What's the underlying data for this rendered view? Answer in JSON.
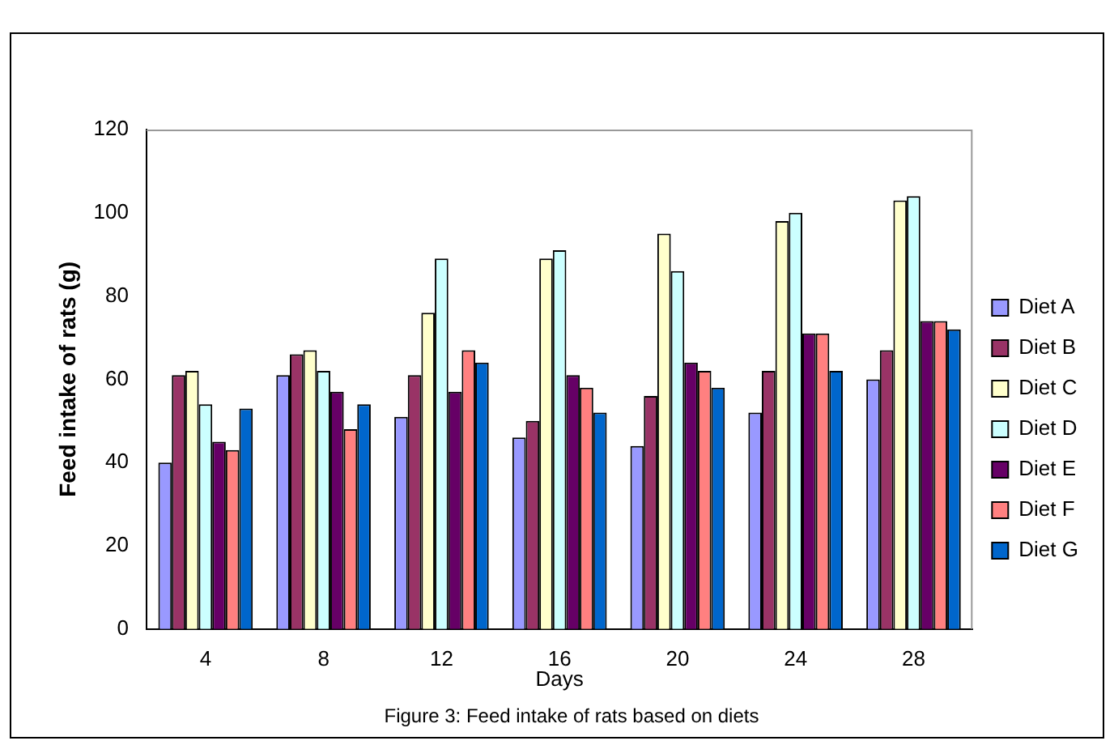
{
  "chart_data": {
    "type": "bar",
    "title": "Figure 3: Feed intake of rats based on diets",
    "xlabel": "Days",
    "ylabel": "Feed intake of rats (g)",
    "categories": [
      "4",
      "8",
      "12",
      "16",
      "20",
      "24",
      "28"
    ],
    "series": [
      {
        "name": "Diet A",
        "color": "#9999ff",
        "values": [
          40,
          61,
          51,
          46,
          44,
          52,
          60
        ]
      },
      {
        "name": "Diet B",
        "color": "#993366",
        "values": [
          61,
          66,
          61,
          50,
          56,
          62,
          67
        ]
      },
      {
        "name": "Diet C",
        "color": "#ffffcc",
        "values": [
          62,
          67,
          76,
          89,
          95,
          98,
          103
        ]
      },
      {
        "name": "Diet D",
        "color": "#ccffff",
        "values": [
          54,
          62,
          89,
          91,
          86,
          100,
          104
        ]
      },
      {
        "name": "Diet E",
        "color": "#660066",
        "values": [
          45,
          57,
          57,
          61,
          64,
          71,
          74
        ]
      },
      {
        "name": "Diet F",
        "color": "#ff8080",
        "values": [
          43,
          48,
          67,
          58,
          62,
          71,
          74
        ]
      },
      {
        "name": "Diet G",
        "color": "#0066cc",
        "values": [
          53,
          54,
          64,
          52,
          58,
          62,
          72
        ]
      }
    ],
    "ylim": [
      0,
      120
    ],
    "yticks": [
      0,
      20,
      40,
      60,
      80,
      100,
      120
    ],
    "grid": false,
    "legend": "right"
  }
}
